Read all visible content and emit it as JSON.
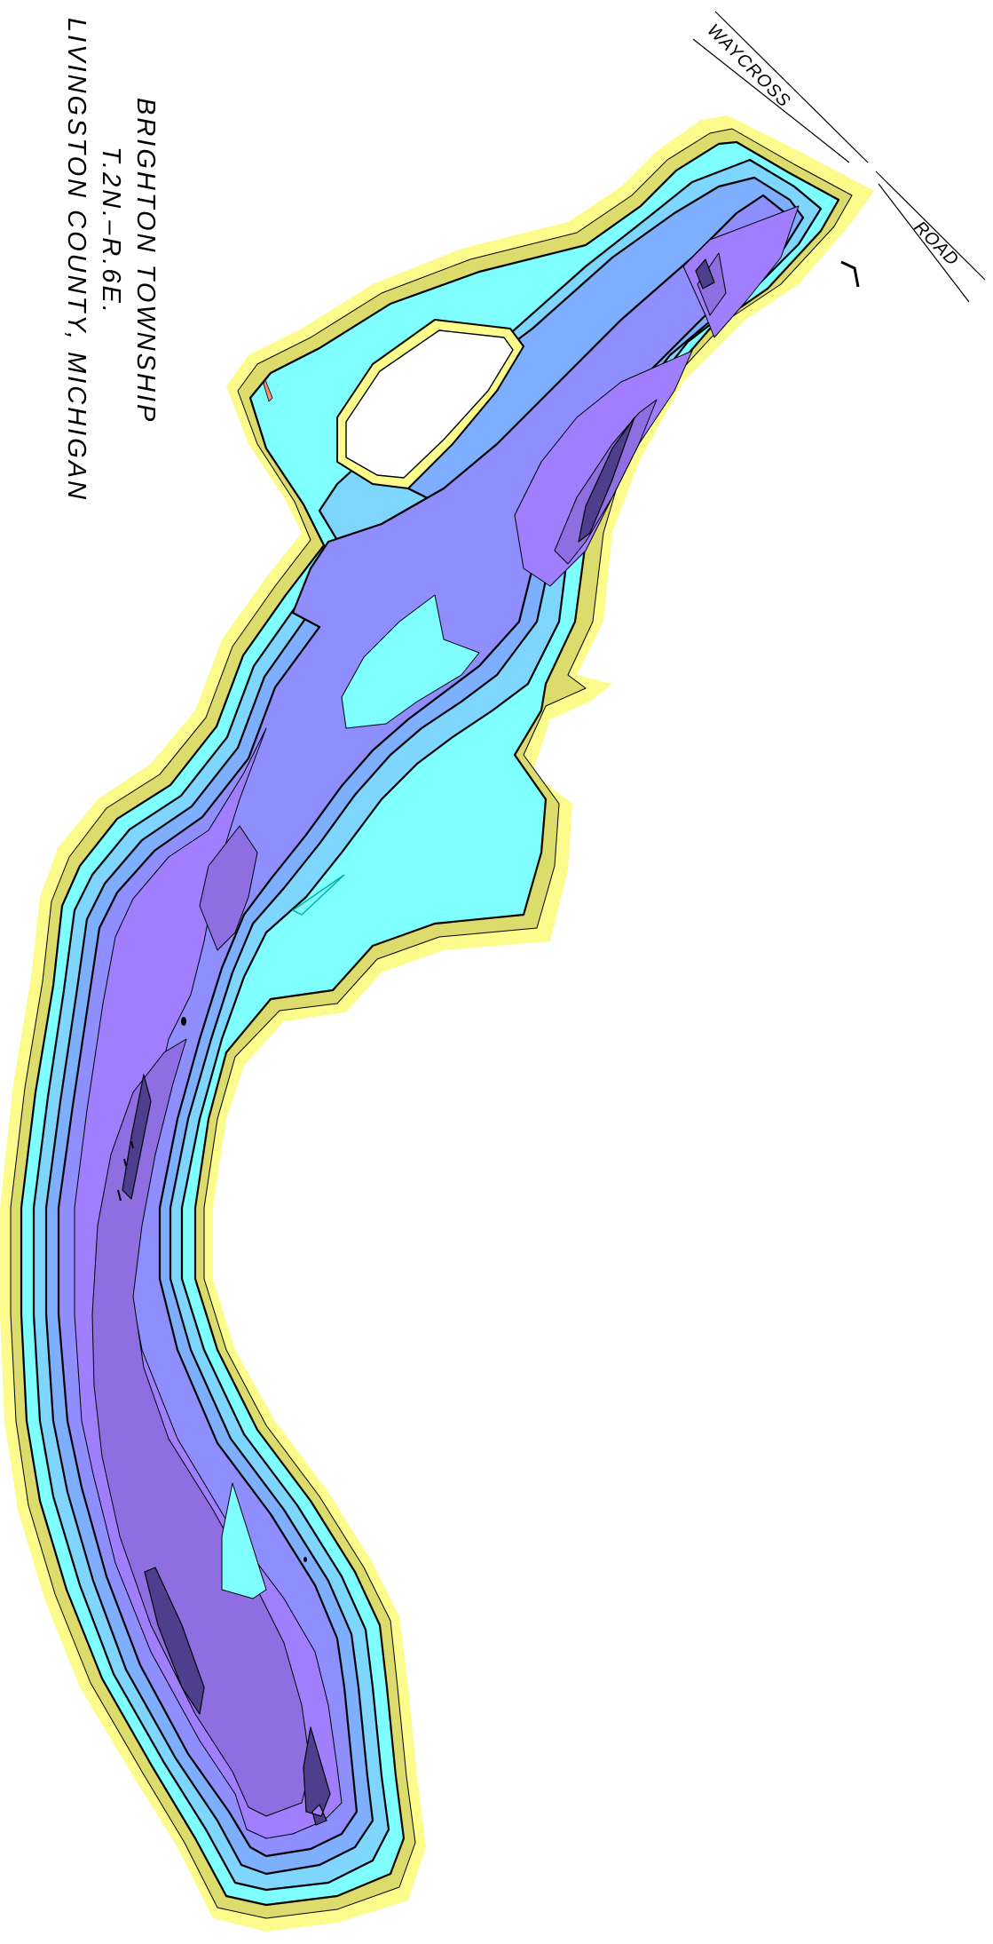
{
  "map": {
    "title_lines": [
      "BRIGHTON TOWNSHIP",
      "T.2N.–R.6E.",
      "LIVINGSTON COUNTY, MICHIGAN"
    ],
    "road_labels": {
      "road_name_part1": "WAYCROSS",
      "road_name_part2": "ROAD"
    }
  },
  "colors": {
    "buffer": "#fcfc8c",
    "shore": "#dcdc6c",
    "shallow_cyan": "#7efefe",
    "light_blue": "#7ed6fe",
    "mid_blue": "#7eaefe",
    "blue_purple": "#8e8efe",
    "purple": "#a07efe",
    "deep_purple": "#8e6ee0",
    "deepest": "#4e3e8e",
    "island_fill": "#ffffff",
    "island_ring": "#fcfc8c",
    "marker_orange": "#fe8e6e"
  }
}
